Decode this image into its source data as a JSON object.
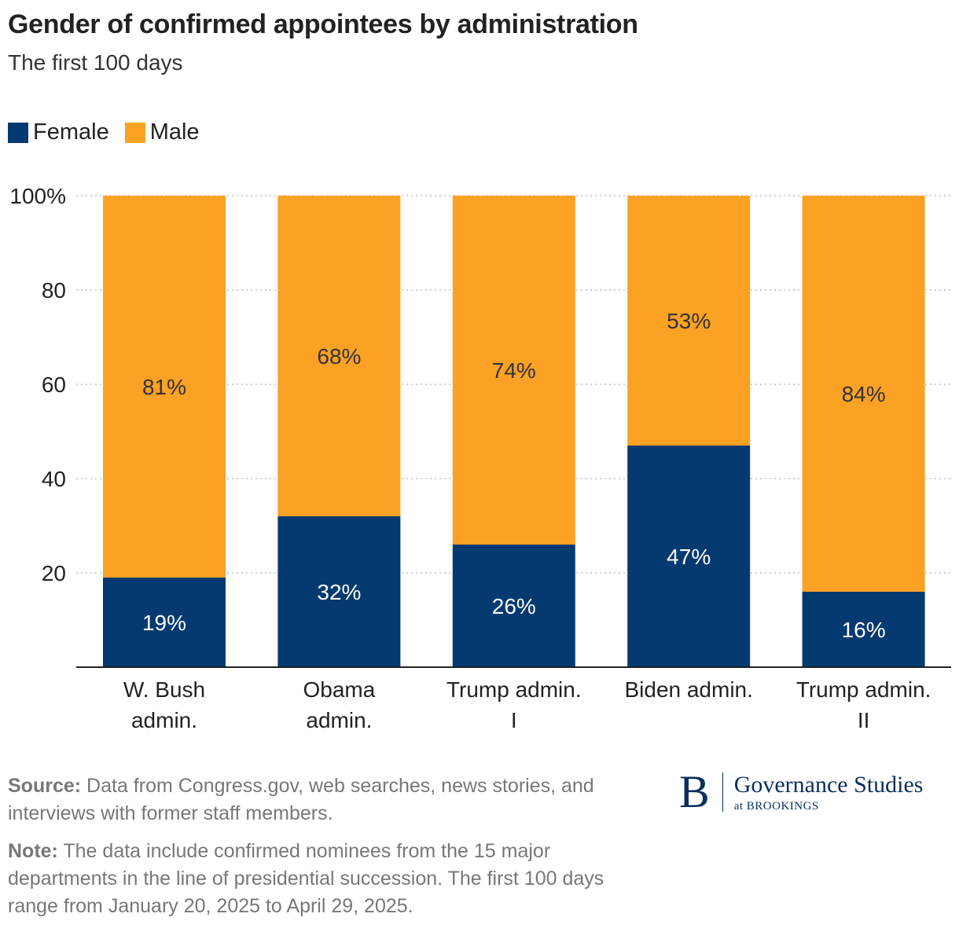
{
  "header": {
    "title": "Gender of confirmed appointees by administration",
    "subtitle": "The first 100 days"
  },
  "colors": {
    "female": "#043a70",
    "male": "#fba124"
  },
  "chart_data": {
    "type": "bar",
    "stacked": true,
    "title": "Gender of confirmed appointees by administration",
    "subtitle": "The first 100 days",
    "categories": [
      [
        "W. Bush",
        "admin."
      ],
      [
        "Obama",
        "admin."
      ],
      [
        "Trump admin.",
        "I"
      ],
      [
        "Biden admin."
      ],
      [
        "Trump admin.",
        "II"
      ]
    ],
    "series": [
      {
        "name": "Female",
        "values": [
          19,
          32,
          26,
          47,
          16
        ],
        "labels": [
          "19%",
          "32%",
          "26%",
          "47%",
          "16%"
        ]
      },
      {
        "name": "Male",
        "values": [
          81,
          68,
          74,
          53,
          84
        ],
        "labels": [
          "81%",
          "68%",
          "74%",
          "53%",
          "84%"
        ]
      }
    ],
    "ylim": [
      0,
      100
    ],
    "yticks": [
      {
        "value": 20,
        "label": "20"
      },
      {
        "value": 40,
        "label": "40"
      },
      {
        "value": 60,
        "label": "60"
      },
      {
        "value": 80,
        "label": "80"
      },
      {
        "value": 100,
        "label": "100%"
      }
    ],
    "grid": true,
    "legend_position": "top-left"
  },
  "footer": {
    "source_label": "Source:",
    "source_text": " Data from Congress.gov, web searches, news stories, and interviews with former staff members.",
    "note_label": "Note:",
    "note_text": " The data include confirmed nominees from the 15 major departments in the line of presidential succession. The first 100 days range from January 20, 2025 to April 29, 2025."
  },
  "logo": {
    "letter": "B",
    "name": "Governance Studies",
    "org": "at BROOKINGS"
  }
}
